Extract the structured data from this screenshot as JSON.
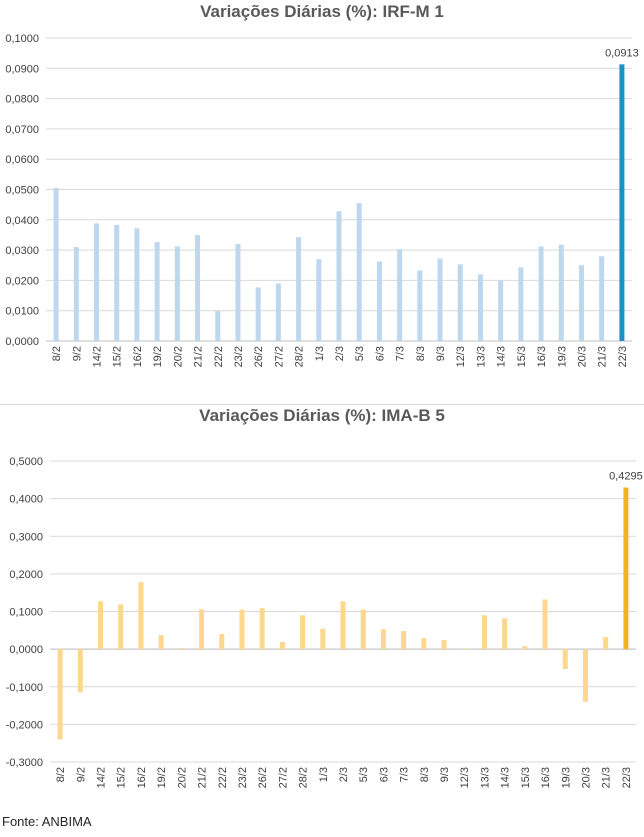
{
  "chart_data": [
    {
      "type": "bar",
      "title": "Variações Diárias (%): IRF-M 1",
      "xlabel": "",
      "ylabel": "",
      "ylim": [
        0,
        0.1
      ],
      "ytick_step": 0.01,
      "ytick_decimals": 4,
      "grid": true,
      "categories": [
        "8/2",
        "9/2",
        "14/2",
        "15/2",
        "16/2",
        "19/2",
        "20/2",
        "21/2",
        "22/2",
        "23/2",
        "26/2",
        "27/2",
        "28/2",
        "1/3",
        "2/3",
        "5/3",
        "6/3",
        "7/3",
        "8/3",
        "9/3",
        "12/3",
        "13/3",
        "14/3",
        "15/3",
        "16/3",
        "19/3",
        "20/3",
        "21/3",
        "22/3"
      ],
      "values": [
        0.0505,
        0.031,
        0.0388,
        0.0383,
        0.0372,
        0.0326,
        0.0312,
        0.035,
        0.0098,
        0.032,
        0.0177,
        0.019,
        0.0343,
        0.027,
        0.0428,
        0.0455,
        0.0262,
        0.0303,
        0.0233,
        0.0272,
        0.0253,
        0.022,
        0.0199,
        0.0243,
        0.0312,
        0.0318,
        0.025,
        0.028,
        0.0913
      ],
      "bar_color": "#bdd7ee",
      "highlight_color": "#1f8fc7",
      "data_labels": [
        {
          "index": 28,
          "text": "0,0913"
        }
      ]
    },
    {
      "type": "bar",
      "title": "Variações Diárias (%): IMA-B 5",
      "xlabel": "",
      "ylabel": "",
      "ylim": [
        -0.3,
        0.5
      ],
      "ytick_step": 0.1,
      "ytick_decimals": 4,
      "grid": true,
      "categories": [
        "8/2",
        "9/2",
        "14/2",
        "15/2",
        "16/2",
        "19/2",
        "20/2",
        "21/2",
        "22/2",
        "23/2",
        "26/2",
        "27/2",
        "28/2",
        "1/3",
        "2/3",
        "5/3",
        "6/3",
        "7/3",
        "8/3",
        "9/3",
        "12/3",
        "13/3",
        "14/3",
        "15/3",
        "16/3",
        "19/3",
        "20/3",
        "21/3",
        "22/3"
      ],
      "values": [
        -0.24,
        -0.115,
        0.127,
        0.119,
        0.178,
        0.037,
        0.003,
        0.106,
        0.04,
        0.105,
        0.109,
        0.019,
        0.09,
        0.054,
        0.127,
        0.105,
        0.053,
        0.048,
        0.029,
        0.024,
        0.002,
        0.09,
        0.082,
        0.008,
        0.132,
        -0.053,
        -0.14,
        0.032,
        0.4295
      ],
      "bar_color": "#fdd78c",
      "highlight_color": "#f2b227",
      "data_labels": [
        {
          "index": 28,
          "text": "0,4295"
        }
      ]
    }
  ],
  "source": "Fonte: ANBIMA"
}
